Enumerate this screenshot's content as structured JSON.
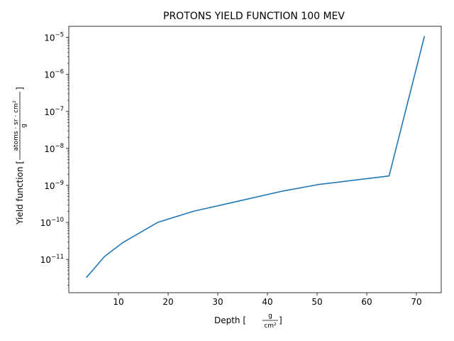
{
  "chart_data": {
    "type": "line",
    "title": "PROTONS YIELD FUNCTION 100 MEV",
    "xlabel": {
      "prefix": "Depth [",
      "numerator": "g",
      "denominator": "cm²",
      "suffix": "]"
    },
    "ylabel": {
      "prefix": "Yield function [",
      "numerator": "atoms · sr · cm²",
      "denominator": "g",
      "suffix": "]"
    },
    "xlim": [
      0,
      75
    ],
    "ylim_log10": [
      -11.9,
      -4.7
    ],
    "yscale": "log",
    "grid": false,
    "x_ticks": [
      10,
      20,
      30,
      40,
      50,
      60,
      70
    ],
    "y_ticks": [
      {
        "exp": -11,
        "base": "10",
        "power": "−11"
      },
      {
        "exp": -10,
        "base": "10",
        "power": "−10"
      },
      {
        "exp": -9,
        "base": "10",
        "power": "−9"
      },
      {
        "exp": -8,
        "base": "10",
        "power": "−8"
      },
      {
        "exp": -7,
        "base": "10",
        "power": "−7"
      },
      {
        "exp": -6,
        "base": "10",
        "power": "−6"
      },
      {
        "exp": -5,
        "base": "10",
        "power": "−5"
      }
    ],
    "series": [
      {
        "color": "#1f77b4",
        "x": [
          3.6,
          7.2,
          10.8,
          17.9,
          25.1,
          32.3,
          43.0,
          50.2,
          64.5,
          71.6
        ],
        "y": [
          3.3e-12,
          1.2e-11,
          2.8e-11,
          1e-10,
          2e-10,
          3.3e-10,
          7e-10,
          1.05e-09,
          1.8e-09,
          1.05e-05
        ]
      }
    ]
  }
}
